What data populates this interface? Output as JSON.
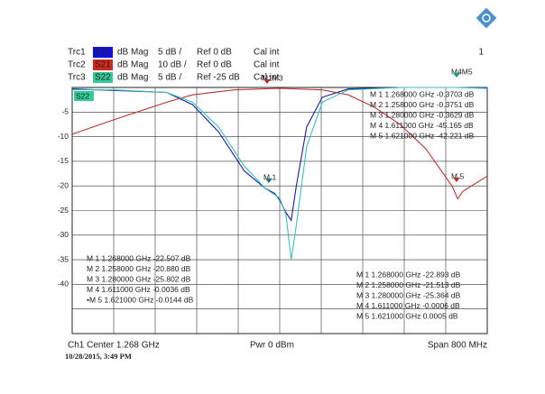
{
  "chart_data": {
    "type": "line",
    "channel_number": "1",
    "xlim": [
      0.868,
      1.668
    ],
    "ylim": [
      -50,
      0
    ],
    "yticks": [
      -5,
      -10,
      -15,
      -20,
      -25,
      -30,
      -35,
      -40
    ],
    "y2lim": [
      -100,
      0
    ],
    "grid": true,
    "series": [
      {
        "trace": "Trc1",
        "name": "S11",
        "format": "dB Mag",
        "scale": "5 dB /",
        "ref": "Ref 0 dB",
        "cal": "Cal int",
        "color": "#1a1a9a",
        "badge": "#1010e0",
        "x": [
          0.868,
          1.05,
          1.1,
          1.15,
          1.2,
          1.24,
          1.258,
          1.268,
          1.28,
          1.29,
          1.3,
          1.32,
          1.35,
          1.4,
          1.5,
          1.611,
          1.668
        ],
        "values": [
          -0.3,
          -1,
          -3.5,
          -9,
          -17,
          -20.5,
          -21.5,
          -22.9,
          -25.4,
          -27,
          -20,
          -8,
          -2,
          -0.3,
          0,
          0,
          0
        ],
        "readouts": [
          "M 1 1.268000 GHz -22.893 dB",
          "M 2 1.258000 GHz -21.513 dB",
          "M 3 1.280000 GHz -25.364 dB",
          "M 4 1.611000 GHz -0.0006 dB",
          "M 5 1.621000 GHz 0.0005 dB"
        ]
      },
      {
        "trace": "Trc2",
        "name": "S21",
        "format": "dB Mag",
        "scale": "10 dB /",
        "ref": "Ref 0 dB",
        "cal": "Cal int",
        "color": "#b8332c",
        "badge": "#d02a20",
        "axis": "y2",
        "x": [
          0.868,
          0.95,
          1.05,
          1.1,
          1.18,
          1.268,
          1.35,
          1.4,
          1.45,
          1.5,
          1.55,
          1.6,
          1.611,
          1.621,
          1.668
        ],
        "values": [
          -19,
          -13,
          -6,
          -3,
          -1,
          -0.37,
          -1,
          -3,
          -8,
          -15,
          -25,
          -40,
          -45.2,
          -42.2,
          -36
        ],
        "readouts": [
          "M 1 1.268000 GHz -0.3703 dB",
          "M 2 1.258000 GHz -0.3751 dB",
          "M 3 1.280000 GHz -0.3629 dB",
          "M 4 1.611000 GHz -45.165 dB",
          "M 5 1.621000 GHz -42.221 dB"
        ]
      },
      {
        "trace": "Trc3",
        "name": "S22",
        "format": "dB Mag",
        "scale": "5 dB /",
        "ref": "Ref -25 dB",
        "cal": "Cal int",
        "color": "#3cbcbc",
        "badge": "#33cc99",
        "x": [
          0.868,
          0.95,
          1.05,
          1.1,
          1.15,
          1.2,
          1.24,
          1.268,
          1.28,
          1.29,
          1.3,
          1.32,
          1.35,
          1.4,
          1.5,
          1.611,
          1.668
        ],
        "values": [
          -0.5,
          -0.5,
          -1,
          -3,
          -8,
          -16,
          -20.5,
          -22.5,
          -25.8,
          -35,
          -28,
          -12,
          -3,
          -0.5,
          0,
          0,
          -0.2
        ],
        "readouts": [
          "M 1 1.268000 GHz -22.507 dB",
          "M 2 1.258000 GHz -20.880 dB",
          "M 3 1.280000 GHz -25.802 dB",
          "M 4 1.611000 GHz -0.0036 dB",
          "•M 5 1.621000 GHz -0.0144 dB"
        ]
      }
    ],
    "marker_tags": [
      "M 1",
      "M 5",
      "M1M3",
      "M4M5"
    ],
    "footer": {
      "center": "Ch1   Center  1.268 GHz",
      "power": "Pwr  0 dBm",
      "span": "Span  800 MHz"
    },
    "timestamp": "10/28/2015, 3:49 PM"
  }
}
